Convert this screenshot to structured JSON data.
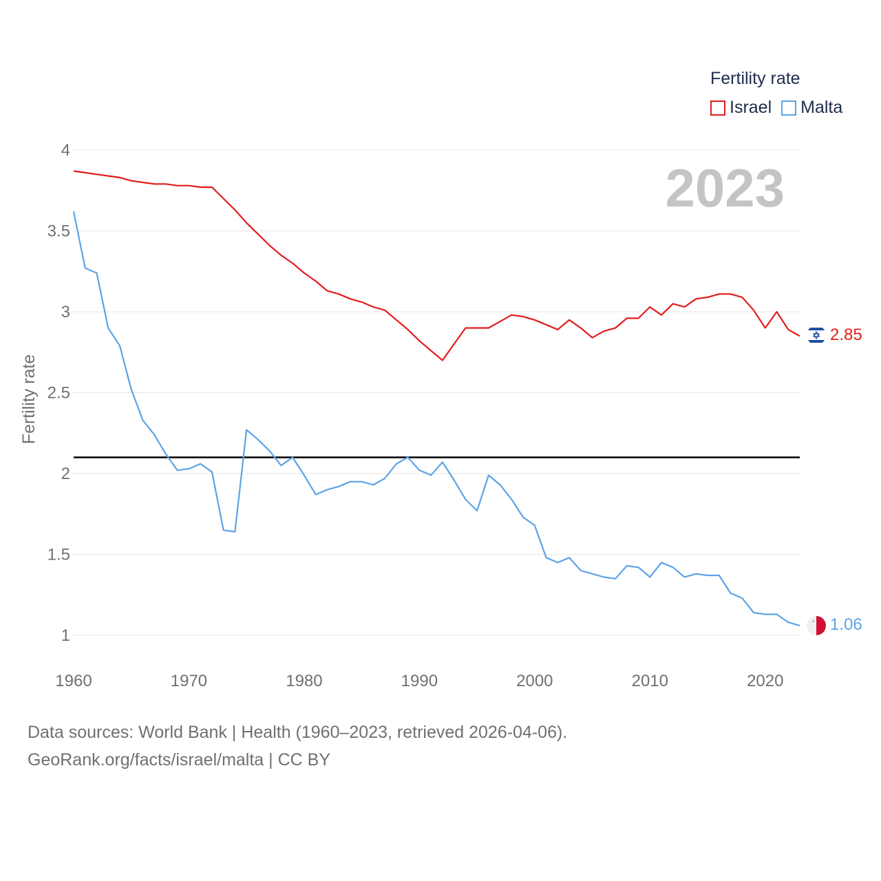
{
  "legend": {
    "title": "Fertility rate",
    "items": [
      {
        "label": "Israel",
        "color": "#e31b1b"
      },
      {
        "label": "Malta",
        "color": "#5ba3e6"
      }
    ]
  },
  "year_display": "2023",
  "end_labels": {
    "israel": "2.85",
    "malta": "1.06"
  },
  "footer": {
    "line1": "Data sources: World Bank | Health (1960–2023, retrieved 2026-04-06).",
    "line2": "GeoRank.org/facts/israel/malta | CC BY"
  },
  "chart_data": {
    "type": "line",
    "title": "Fertility rate",
    "xlabel": "",
    "ylabel": "Fertility rate",
    "xlim": [
      1960,
      2023
    ],
    "ylim": [
      0.8,
      4.0
    ],
    "x_ticks": [
      1960,
      1970,
      1980,
      1990,
      2000,
      2010,
      2020
    ],
    "y_ticks": [
      1,
      1.5,
      2,
      2.5,
      3,
      3.5,
      4
    ],
    "y_tick_labels": [
      "1",
      "1.5",
      "2",
      "2.5",
      "3",
      "3.5",
      "4"
    ],
    "reference_line": {
      "y": 2.1,
      "color": "#000000"
    },
    "x": [
      1960,
      1961,
      1962,
      1963,
      1964,
      1965,
      1966,
      1967,
      1968,
      1969,
      1970,
      1971,
      1972,
      1973,
      1974,
      1975,
      1976,
      1977,
      1978,
      1979,
      1980,
      1981,
      1982,
      1983,
      1984,
      1985,
      1986,
      1987,
      1988,
      1989,
      1990,
      1991,
      1992,
      1993,
      1994,
      1995,
      1996,
      1997,
      1998,
      1999,
      2000,
      2001,
      2002,
      2003,
      2004,
      2005,
      2006,
      2007,
      2008,
      2009,
      2010,
      2011,
      2012,
      2013,
      2014,
      2015,
      2016,
      2017,
      2018,
      2019,
      2020,
      2021,
      2022,
      2023
    ],
    "series": [
      {
        "name": "Israel",
        "color": "#e31b1b",
        "values": [
          3.87,
          3.86,
          3.85,
          3.84,
          3.83,
          3.81,
          3.8,
          3.79,
          3.79,
          3.78,
          3.78,
          3.77,
          3.77,
          3.7,
          3.63,
          3.55,
          3.48,
          3.41,
          3.35,
          3.3,
          3.24,
          3.19,
          3.13,
          3.11,
          3.08,
          3.06,
          3.03,
          3.01,
          2.95,
          2.89,
          2.82,
          2.76,
          2.7,
          2.8,
          2.9,
          2.9,
          2.9,
          2.94,
          2.98,
          2.97,
          2.95,
          2.92,
          2.89,
          2.95,
          2.9,
          2.84,
          2.88,
          2.9,
          2.96,
          2.96,
          3.03,
          2.98,
          3.05,
          3.03,
          3.08,
          3.09,
          3.11,
          3.11,
          3.09,
          3.01,
          2.9,
          3.0,
          2.89,
          2.85
        ]
      },
      {
        "name": "Malta",
        "color": "#5ba3e6",
        "values": [
          3.62,
          3.27,
          3.24,
          2.9,
          2.79,
          2.52,
          2.33,
          2.24,
          2.12,
          2.02,
          2.03,
          2.06,
          2.01,
          1.65,
          1.64,
          2.27,
          2.21,
          2.14,
          2.05,
          2.1,
          1.99,
          1.87,
          1.9,
          1.92,
          1.95,
          1.95,
          1.93,
          1.97,
          2.06,
          2.1,
          2.02,
          1.99,
          2.07,
          1.96,
          1.84,
          1.77,
          1.99,
          1.93,
          1.84,
          1.73,
          1.68,
          1.48,
          1.45,
          1.48,
          1.4,
          1.38,
          1.36,
          1.35,
          1.43,
          1.42,
          1.36,
          1.45,
          1.42,
          1.36,
          1.38,
          1.37,
          1.37,
          1.26,
          1.23,
          1.14,
          1.13,
          1.13,
          1.08,
          1.06
        ]
      }
    ]
  }
}
